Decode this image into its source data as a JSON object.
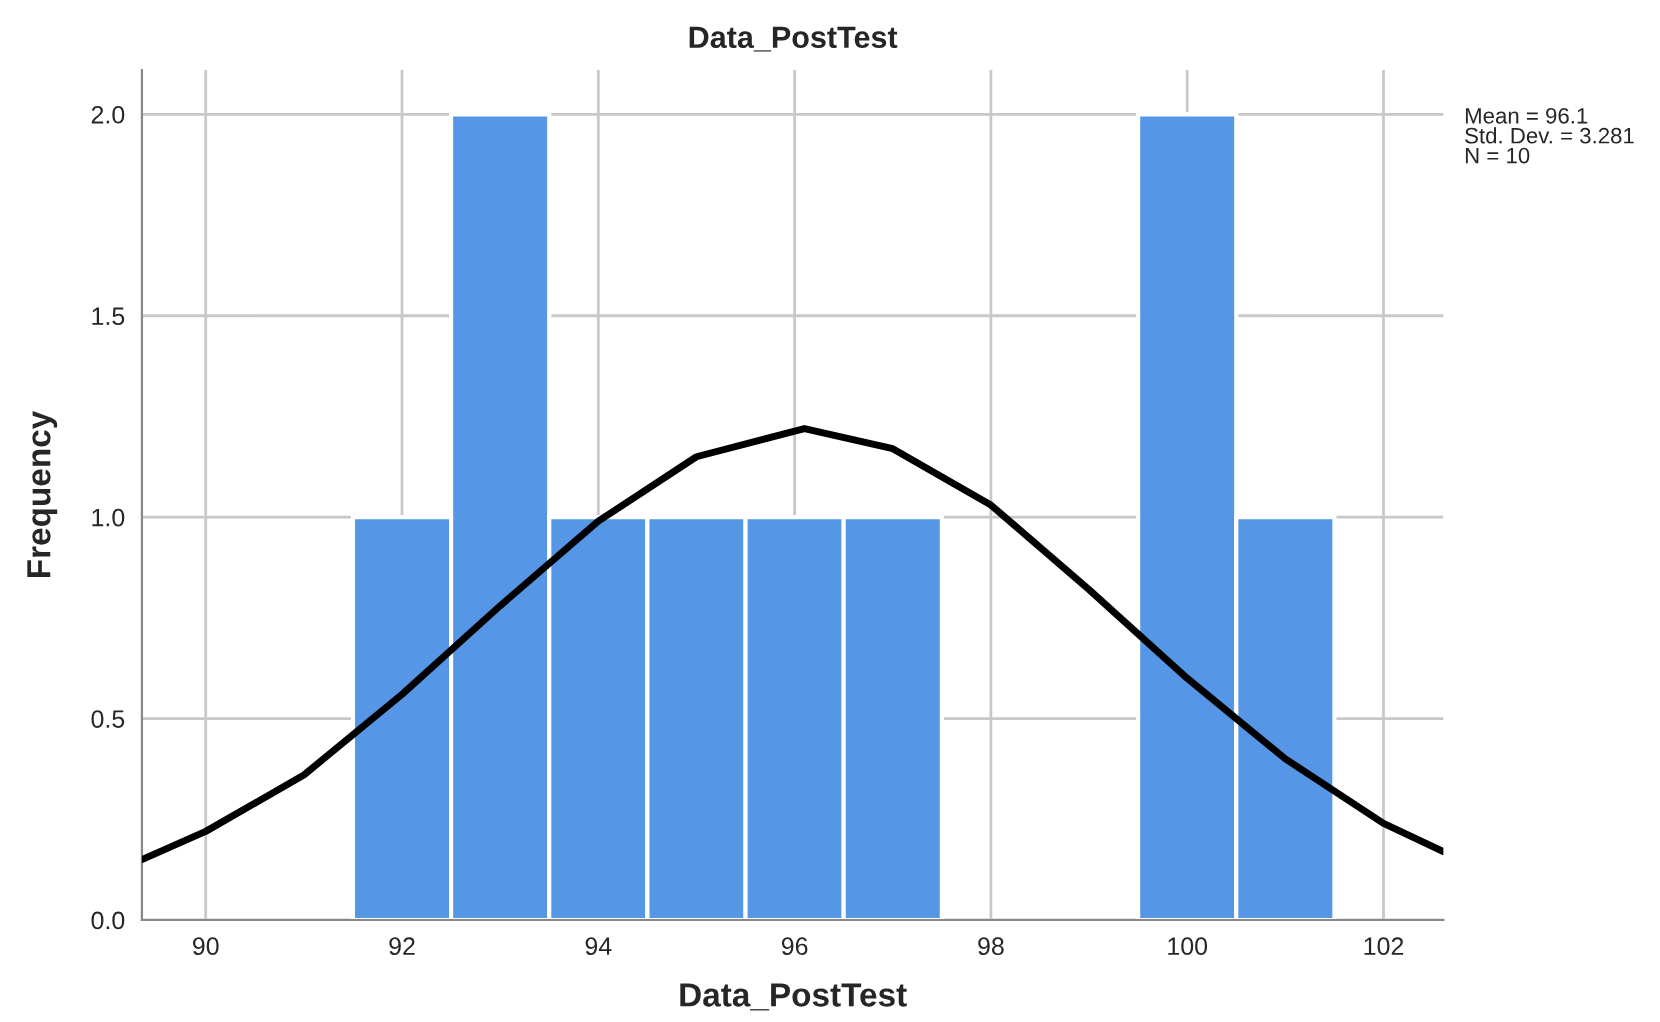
{
  "chart_data": {
    "type": "histogram",
    "title": "Data_PostTest",
    "xlabel": "Data_PostTest",
    "ylabel": "Frequency",
    "bins": [
      91.5,
      92.5,
      93.5,
      94.5,
      95.5,
      96.5,
      97.5,
      98.5,
      99.5,
      100.5,
      101.5
    ],
    "values": [
      1,
      2,
      1,
      1,
      1,
      1,
      0,
      0,
      2,
      1
    ],
    "color": "#5596e6",
    "series": [
      {
        "type": "line",
        "color": "#000000",
        "x": [
          89.35,
          90,
          91,
          92,
          93,
          94,
          95,
          96.1,
          97,
          98,
          99,
          100,
          101,
          102,
          102.61
        ],
        "values": [
          0.15,
          0.22,
          0.36,
          0.56,
          0.78,
          0.99,
          1.15,
          1.22,
          1.17,
          1.03,
          0.82,
          0.6,
          0.4,
          0.24,
          0.17
        ]
      }
    ],
    "xlim": [
      89.35,
      102.61
    ],
    "xticks": [
      90,
      92,
      94,
      96,
      98,
      100,
      102
    ],
    "ylim": [
      0,
      2.11
    ],
    "yticks": [
      {
        "value": 0,
        "label": "0.0"
      },
      {
        "value": 0.5,
        "label": "0.5"
      },
      {
        "value": 1,
        "label": "1.0"
      },
      {
        "value": 1.5,
        "label": "1.5"
      },
      {
        "value": 2,
        "label": "2.0"
      }
    ],
    "grid": true,
    "annotations": [
      "Mean = 96.1\nStd. Dev. = 3.281\nN = 10"
    ]
  }
}
